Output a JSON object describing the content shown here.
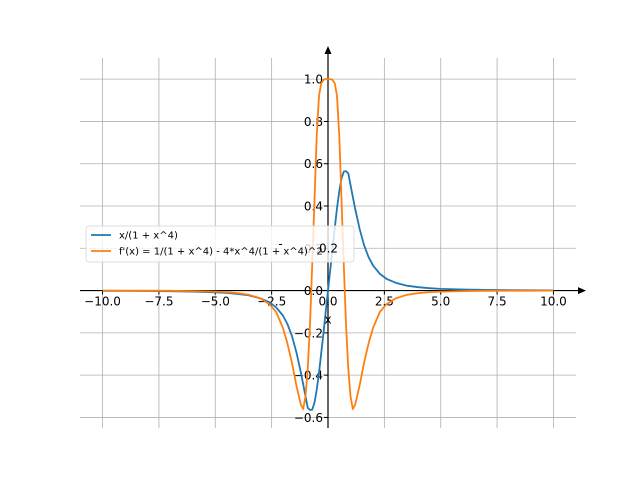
{
  "chart_data": {
    "type": "line",
    "title": "",
    "xlabel": "x",
    "ylabel": "",
    "xlim": [
      -11.0,
      11.0
    ],
    "ylim": [
      -0.65,
      1.1
    ],
    "grid": true,
    "legend_position": "center-left",
    "x_ticks": [
      -10.0,
      -7.5,
      -5.0,
      -2.5,
      0.0,
      2.5,
      5.0,
      7.5,
      10.0
    ],
    "x_tick_labels": [
      "−10.0",
      "−7.5",
      "−5.0",
      "−2.5",
      "0.0",
      "2.5",
      "5.0",
      "7.5",
      "10.0"
    ],
    "y_ticks": [
      -0.6,
      -0.4,
      -0.2,
      0.0,
      0.2,
      0.4,
      0.6,
      0.8,
      1.0
    ],
    "y_tick_labels": [
      "−0.6",
      "−0.4",
      "−0.2",
      "0.0",
      "0.2",
      "0.4",
      "0.6",
      "0.8",
      "1.0"
    ],
    "series": [
      {
        "name": "x/(1 + x^4)",
        "color": "#1f77b4",
        "x": [
          -10.0,
          -9.0,
          -8.0,
          -7.0,
          -6.0,
          -5.0,
          -4.5,
          -4.0,
          -3.5,
          -3.0,
          -2.6,
          -2.3,
          -2.0,
          -1.8,
          -1.6,
          -1.4,
          -1.2,
          -1.0,
          -0.9,
          -0.8,
          -0.7,
          -0.6,
          -0.5,
          -0.4,
          -0.3,
          -0.2,
          -0.1,
          0.0,
          0.1,
          0.2,
          0.3,
          0.4,
          0.5,
          0.6,
          0.7,
          0.8,
          0.9,
          1.0,
          1.2,
          1.4,
          1.6,
          1.8,
          2.0,
          2.3,
          2.6,
          3.0,
          3.5,
          4.0,
          4.5,
          5.0,
          6.0,
          7.0,
          8.0,
          9.0,
          10.0
        ],
        "y": [
          -0.001,
          -0.0014,
          -0.002,
          -0.003,
          -0.005,
          -0.008,
          -0.011,
          -0.016,
          -0.023,
          -0.037,
          -0.055,
          -0.079,
          -0.118,
          -0.158,
          -0.214,
          -0.292,
          -0.388,
          -0.5,
          -0.554,
          -0.565,
          -0.563,
          -0.53,
          -0.47,
          -0.39,
          -0.297,
          -0.2,
          -0.1,
          0.0,
          0.1,
          0.2,
          0.297,
          0.39,
          0.47,
          0.53,
          0.563,
          0.565,
          0.554,
          0.5,
          0.388,
          0.292,
          0.214,
          0.158,
          0.118,
          0.079,
          0.055,
          0.037,
          0.023,
          0.016,
          0.011,
          0.008,
          0.005,
          0.003,
          0.002,
          0.0014,
          0.001
        ]
      },
      {
        "name": "f'(x) = 1/(1 + x^4) - 4*x^4/(1 + x^4)^2",
        "color": "#ff7f0e",
        "x": [
          -10.0,
          -9.0,
          -8.0,
          -7.0,
          -6.0,
          -5.0,
          -4.5,
          -4.0,
          -3.5,
          -3.0,
          -2.6,
          -2.3,
          -2.0,
          -1.8,
          -1.6,
          -1.4,
          -1.2,
          -1.1,
          -1.0,
          -0.9,
          -0.8,
          -0.7,
          -0.6,
          -0.5,
          -0.4,
          -0.3,
          -0.2,
          -0.1,
          0.0,
          0.1,
          0.2,
          0.3,
          0.4,
          0.5,
          0.6,
          0.7,
          0.8,
          0.9,
          1.0,
          1.1,
          1.2,
          1.4,
          1.6,
          1.8,
          2.0,
          2.3,
          2.6,
          3.0,
          3.5,
          4.0,
          4.5,
          5.0,
          6.0,
          7.0,
          8.0,
          9.0,
          10.0
        ],
        "y": [
          -0.0003,
          -0.0004,
          -0.0007,
          -0.0012,
          -0.0023,
          -0.005,
          -0.007,
          -0.012,
          -0.02,
          -0.037,
          -0.064,
          -0.101,
          -0.176,
          -0.25,
          -0.34,
          -0.45,
          -0.54,
          -0.56,
          -0.5,
          -0.37,
          -0.16,
          0.12,
          0.43,
          0.73,
          0.92,
          0.98,
          0.997,
          1.0,
          1.0,
          1.0,
          0.997,
          0.98,
          0.92,
          0.73,
          0.43,
          0.12,
          -0.16,
          -0.37,
          -0.5,
          -0.56,
          -0.54,
          -0.45,
          -0.34,
          -0.25,
          -0.176,
          -0.101,
          -0.064,
          -0.037,
          -0.02,
          -0.012,
          -0.007,
          -0.005,
          -0.0023,
          -0.0012,
          -0.0007,
          -0.0004,
          -0.0003
        ]
      }
    ],
    "annotations": [
      {
        "text": "0.2",
        "x": -0.4,
        "y": 0.2
      },
      {
        "text": "-",
        "x": -2.2,
        "y": 0.22
      }
    ]
  }
}
